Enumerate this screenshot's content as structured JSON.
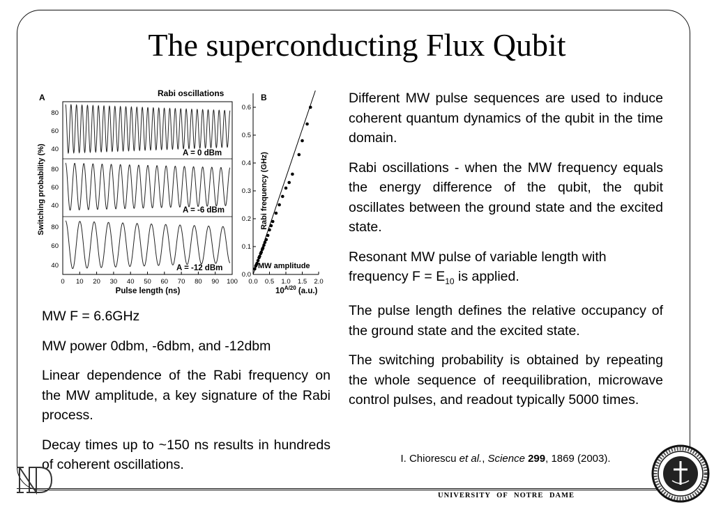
{
  "title": "The superconducting Flux Qubit",
  "right_text": {
    "p1": "Different MW pulse sequences are used to induce coherent quantum dynamics of the qubit in the time domain.",
    "p2": "Rabi oscillations - when the MW frequency equals the energy difference of the qubit, the qubit oscillates between the ground state and the excited state.",
    "p3_pre": "Resonant MW pulse of variable length with frequency F = E",
    "p3_sub": "10",
    "p3_post": " is applied.",
    "p4": "The pulse length defines the relative occupancy of the ground state and the excited state.",
    "p5": "The switching probability is obtained by repeating the whole sequence of reequilibration, microwave control pulses, and readout typically 5000 times."
  },
  "left_text": {
    "p1": "MW F = 6.6GHz",
    "p2": "MW power 0dbm, -6dbm, and -12dbm",
    "p3": "Linear dependence of the Rabi frequency on the MW amplitude, a key signature of the Rabi process.",
    "p4": "Decay times up to ~150 ns results in hundreds of coherent oscillations."
  },
  "citation": {
    "author": "I. Chiorescu ",
    "etal": "et al.",
    "sep1": ", ",
    "journal": "Science",
    "space": " ",
    "volume": "299",
    "rest": ", 1869 (2003)."
  },
  "footer": "UNIVERSITY OF NOTRE DAME",
  "figure": {
    "panel_a": {
      "label": "A",
      "title": "Rabi oscillations",
      "ylabel": "Switching probability (%)",
      "xlabel": "Pulse length (ns)",
      "x_ticks": [
        "0",
        "10",
        "20",
        "30",
        "40",
        "50",
        "60",
        "70",
        "80",
        "90",
        "100"
      ],
      "sub1": {
        "label": "A = 0 dBm",
        "y_ticks": [
          "80",
          "60",
          "40"
        ],
        "cycles": 30,
        "decay": 0.25
      },
      "sub2": {
        "label": "A = -6 dBm",
        "y_ticks": [
          "80",
          "60",
          "40"
        ],
        "cycles": 18,
        "decay": 0.2
      },
      "sub3": {
        "label": "A = -12 dBm",
        "y_ticks": [
          "80",
          "60",
          "40"
        ],
        "cycles": 11.5,
        "decay": 0.25
      }
    },
    "panel_b": {
      "label": "B",
      "ylabel": "Rabi frequency (GHz)",
      "xlabel_main": "10",
      "xlabel_sup": "A/20",
      "xlabel_unit": " (a.u.)",
      "annotation": "MW amplitude",
      "y_ticks": [
        "0.0",
        "0.1",
        "0.2",
        "0.3",
        "0.4",
        "0.5",
        "0.6"
      ],
      "x_ticks": [
        "0.0",
        "0.5",
        "1.0",
        "1.5",
        "2.0"
      ]
    },
    "chart_data": {
      "type": "scatter",
      "title": "",
      "xlabel": "10^(A/20) (a.u.)",
      "ylabel": "Rabi frequency (GHz)",
      "xlim": [
        0,
        2.0
      ],
      "ylim": [
        0,
        0.65
      ],
      "x": [
        0.05,
        0.08,
        0.1,
        0.12,
        0.15,
        0.18,
        0.2,
        0.23,
        0.25,
        0.28,
        0.3,
        0.33,
        0.36,
        0.4,
        0.45,
        0.5,
        0.55,
        0.6,
        0.7,
        0.8,
        0.9,
        1.0,
        1.1,
        1.2,
        1.4,
        1.5,
        1.65,
        1.75
      ],
      "y": [
        0.02,
        0.03,
        0.035,
        0.04,
        0.05,
        0.06,
        0.065,
        0.075,
        0.08,
        0.09,
        0.095,
        0.105,
        0.115,
        0.125,
        0.14,
        0.16,
        0.175,
        0.19,
        0.22,
        0.25,
        0.28,
        0.31,
        0.33,
        0.36,
        0.43,
        0.48,
        0.54,
        0.6
      ]
    }
  }
}
